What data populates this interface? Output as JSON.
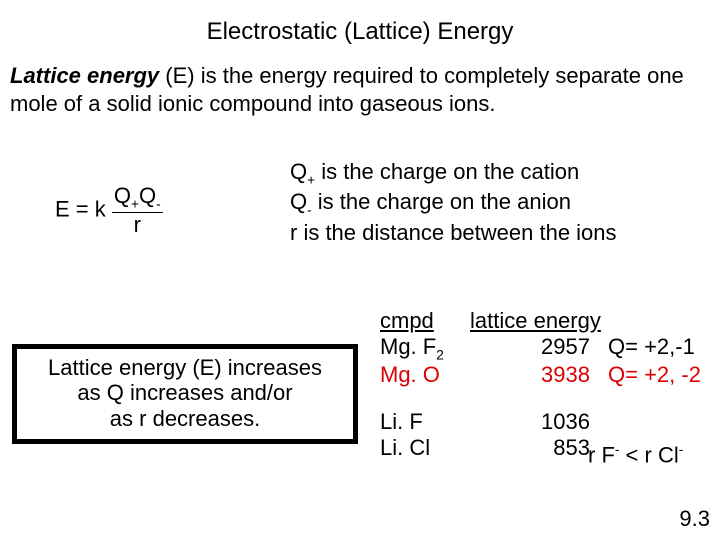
{
  "title": "Electrostatic (Lattice) Energy",
  "definition": {
    "term": "Lattice energy",
    "rest": " (E) is the energy required to completely separate one mole of a solid ionic compound into gaseous ions."
  },
  "formula": {
    "pre": "E = k ",
    "numer_a": "Q",
    "numer_a_sub": "+",
    "numer_b": "Q",
    "numer_b_sub": "-",
    "denom": "r"
  },
  "legend": {
    "row1_a": "Q",
    "row1_sub": "+",
    "row1_b": " is the charge on the cation",
    "row2_a": "Q",
    "row2_sub": "-",
    "row2_b": " is the charge on the anion",
    "row3": "r is the distance between the ions"
  },
  "box": {
    "line1": "Lattice energy (E) increases",
    "line2": "as Q increases and/or",
    "line3": "as r decreases."
  },
  "table": {
    "header_cmpd": "cmpd",
    "header_energy": "lattice energy",
    "rows": [
      {
        "cmpd_a": "Mg. F",
        "cmpd_sub": "2",
        "energy": "2957",
        "note": "Q= +2,-1",
        "red": false
      },
      {
        "cmpd_a": "Mg. O",
        "cmpd_sub": "",
        "energy": "3938",
        "note": "Q= +2, -2",
        "red": true
      }
    ],
    "rows2": [
      {
        "cmpd_a": "Li. F",
        "energy": "1036"
      },
      {
        "cmpd_a": "Li. Cl",
        "energy": "853"
      }
    ]
  },
  "note2": {
    "a": "r F",
    "a_sup": "-",
    "b": " < r Cl",
    "b_sup": "-"
  },
  "pgref": "9.3"
}
